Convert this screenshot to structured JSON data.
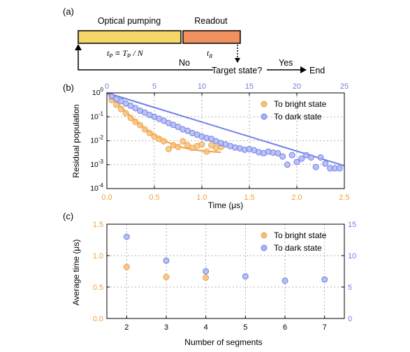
{
  "colors": {
    "orange": "#f0a040",
    "orange_fill": "#f5c07a",
    "blue": "#6f7fe8",
    "blue_fill": "#aab4f2",
    "pump_bar": "#f5d768",
    "readout_bar": "#f0915f",
    "grid": "#999999"
  },
  "panel_a": {
    "label": "(a)",
    "pumping_title": "Optical pumping",
    "readout_title": "Readout",
    "tp_left": "t",
    "tp_sub": "P",
    "tp_mid": " = ",
    "TP_main": "T",
    "TP_sub": "P",
    "tp_tail": " / N",
    "tr_main": "t",
    "tr_sub": "R",
    "no_label": "No",
    "question": "Target state?",
    "yes_label": "Yes",
    "end_label": "End"
  },
  "chart_data": [
    {
      "panel": "(b)",
      "type": "scatter",
      "xlabel": "Time (μs)",
      "ylabel": "Residual population",
      "xlim": [
        0,
        2.5
      ],
      "x_ticks": [
        "0.0",
        "0.5",
        "1.0",
        "1.5",
        "2.0",
        "2.5"
      ],
      "top_xlim": [
        0,
        25
      ],
      "top_x_ticks": [
        "0",
        "5",
        "10",
        "15",
        "20",
        "25"
      ],
      "y_scale": "log",
      "ylim": [
        0.0001,
        1
      ],
      "y_ticks": [
        {
          "base": "10",
          "exp": "0"
        },
        {
          "base": "10",
          "exp": "-1"
        },
        {
          "base": "10",
          "exp": "-2"
        },
        {
          "base": "10",
          "exp": "-3"
        },
        {
          "base": "10",
          "exp": "-4"
        }
      ],
      "grid": true,
      "legend_position": "top-right",
      "series": [
        {
          "name": "To bright state",
          "x": [
            0.05,
            0.1,
            0.15,
            0.2,
            0.25,
            0.3,
            0.35,
            0.4,
            0.45,
            0.5,
            0.55,
            0.6,
            0.65,
            0.7,
            0.75,
            0.8,
            0.85,
            0.9,
            0.95,
            1.0,
            1.05,
            1.1,
            1.15,
            1.2
          ],
          "y": [
            0.5,
            0.32,
            0.21,
            0.14,
            0.09,
            0.062,
            0.045,
            0.03,
            0.021,
            0.015,
            0.012,
            0.0095,
            0.0045,
            0.0065,
            0.0055,
            0.0095,
            0.0065,
            0.005,
            0.006,
            0.007,
            0.0035,
            0.0065,
            0.005,
            0.0055
          ],
          "fit_x": [
            0,
            0.2,
            0.4,
            0.6,
            0.75,
            0.9,
            1.05,
            1.2
          ],
          "fit_y": [
            1.0,
            0.16,
            0.032,
            0.01,
            0.0058,
            0.0042,
            0.0036,
            0.0033
          ]
        },
        {
          "name": "To dark state",
          "x": [
            0.05,
            0.1,
            0.15,
            0.2,
            0.25,
            0.3,
            0.35,
            0.4,
            0.45,
            0.5,
            0.55,
            0.6,
            0.65,
            0.7,
            0.75,
            0.8,
            0.85,
            0.9,
            0.95,
            1.0,
            1.05,
            1.1,
            1.15,
            1.2,
            1.25,
            1.3,
            1.35,
            1.4,
            1.45,
            1.5,
            1.55,
            1.6,
            1.65,
            1.7,
            1.75,
            1.8,
            1.85,
            1.9,
            1.95,
            2.0,
            2.05,
            2.1,
            2.15,
            2.2,
            2.25,
            2.3,
            2.35,
            2.4,
            2.45
          ],
          "y": [
            0.72,
            0.56,
            0.45,
            0.36,
            0.29,
            0.23,
            0.18,
            0.15,
            0.12,
            0.1,
            0.083,
            0.068,
            0.055,
            0.046,
            0.038,
            0.03,
            0.026,
            0.021,
            0.018,
            0.015,
            0.013,
            0.012,
            0.0095,
            0.008,
            0.007,
            0.006,
            0.0052,
            0.0048,
            0.0042,
            0.0045,
            0.004,
            0.0033,
            0.003,
            0.0035,
            0.0032,
            0.003,
            0.0022,
            0.001,
            0.0025,
            0.0013,
            0.0018,
            0.0025,
            0.002,
            0.0008,
            0.002,
            0.0011,
            0.0007,
            0.0007,
            0.0007
          ],
          "fit_x": [
            0,
            2.5
          ],
          "fit_y": [
            1.0,
            0.0009
          ]
        }
      ]
    },
    {
      "panel": "(c)",
      "type": "scatter",
      "xlabel": "Number of segments",
      "ylabel": "Average time (μs)",
      "xlim": [
        1.5,
        7.5
      ],
      "x_ticks": [
        "2",
        "3",
        "4",
        "5",
        "6",
        "7"
      ],
      "ylim": [
        0,
        1.5
      ],
      "y_ticks": [
        "0.0",
        "0.5",
        "1.0",
        "1.5"
      ],
      "right_ylim": [
        0,
        15
      ],
      "right_y_ticks": [
        "0",
        "5",
        "10",
        "15"
      ],
      "grid": true,
      "legend_position": "top-right",
      "series": [
        {
          "name": "To bright state",
          "x": [
            2,
            3,
            4
          ],
          "y": [
            0.82,
            0.66,
            0.65
          ],
          "axis": "left"
        },
        {
          "name": "To dark state",
          "x": [
            2,
            3,
            4,
            5,
            6,
            7
          ],
          "y": [
            13.0,
            9.2,
            7.5,
            6.7,
            6.0,
            6.2
          ],
          "axis": "right"
        }
      ]
    }
  ]
}
